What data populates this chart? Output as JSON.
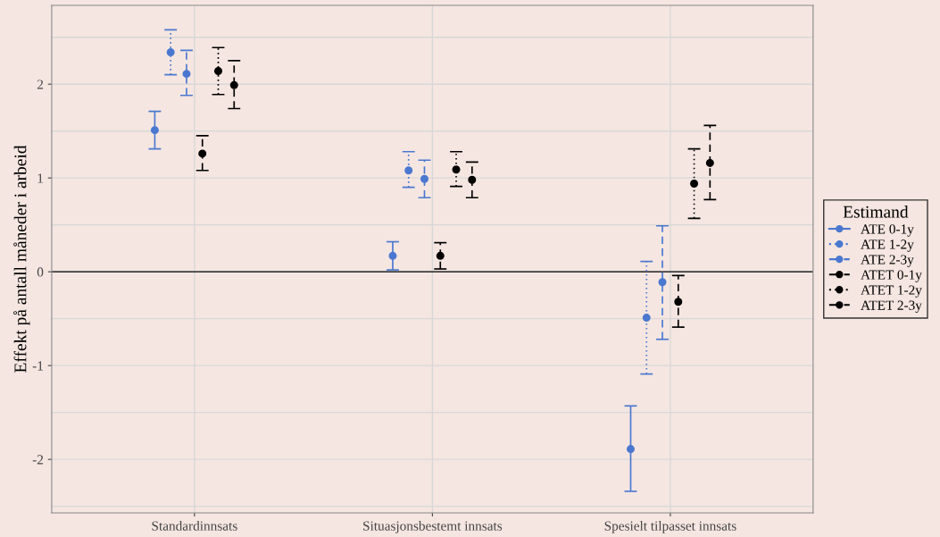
{
  "chart_data": {
    "type": "scatter",
    "ylabel": "Effekt på antall måneder i arbeid",
    "legend_title": "Estimand",
    "legend": "right",
    "grid": true,
    "marker": "circle",
    "categories": [
      "Standardinnsats",
      "Situasjonsbestemt innsats",
      "Spesielt tilpasset innsats"
    ],
    "ylim": [
      -2.57,
      2.84
    ],
    "yticks": [
      {
        "value": -2.5,
        "label": null
      },
      -2,
      {
        "value": -1.5,
        "label": null
      },
      -1,
      {
        "value": -0.5,
        "label": null
      },
      0,
      {
        "value": 0.5,
        "label": null
      },
      1,
      {
        "value": 1.5,
        "label": null
      },
      2,
      {
        "value": 2.5,
        "label": null
      }
    ],
    "ref_lines": [
      {
        "axis": "y",
        "value": 0,
        "color": "#000000"
      }
    ],
    "series": [
      {
        "name": "ATE 0-1y",
        "color": "#4a78d0",
        "line_style": "solid",
        "values": [
          1.51,
          0.17,
          -1.89
        ],
        "errors": [
          [
            1.31,
            1.71
          ],
          [
            0.02,
            0.32
          ],
          [
            -2.34,
            -1.43
          ]
        ]
      },
      {
        "name": "ATE 1-2y",
        "color": "#4a78d0",
        "line_style": "dotted",
        "values": [
          2.34,
          1.08,
          -0.49
        ],
        "errors": [
          [
            2.1,
            2.58
          ],
          [
            0.9,
            1.28
          ],
          [
            -1.09,
            0.11
          ]
        ]
      },
      {
        "name": "ATE 2-3y",
        "color": "#4a78d0",
        "line_style": "dashed",
        "values": [
          2.11,
          0.99,
          -0.11
        ],
        "errors": [
          [
            1.88,
            2.36
          ],
          [
            0.79,
            1.19
          ],
          [
            -0.72,
            0.49
          ]
        ]
      },
      {
        "name": "ATET 0-1y",
        "color": "#000000",
        "line_style": "dashed",
        "values": [
          1.26,
          0.17,
          -0.32
        ],
        "errors": [
          [
            1.08,
            1.45
          ],
          [
            0.03,
            0.31
          ],
          [
            -0.59,
            -0.04
          ]
        ]
      },
      {
        "name": "ATET 1-2y",
        "color": "#000000",
        "line_style": "dotted",
        "values": [
          2.14,
          1.09,
          0.94
        ],
        "errors": [
          [
            1.89,
            2.39
          ],
          [
            0.91,
            1.28
          ],
          [
            0.57,
            1.31
          ]
        ]
      },
      {
        "name": "ATET 2-3y",
        "color": "#000000",
        "line_style": "dashed",
        "values": [
          1.99,
          0.98,
          1.16
        ],
        "errors": [
          [
            1.74,
            2.25
          ],
          [
            0.79,
            1.17
          ],
          [
            0.77,
            1.56
          ]
        ]
      }
    ]
  }
}
